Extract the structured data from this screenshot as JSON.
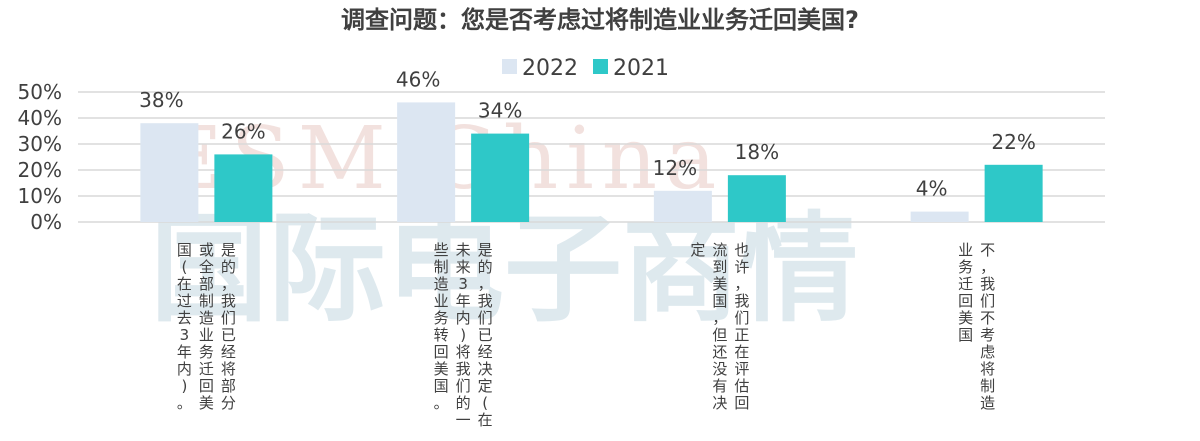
{
  "watermark": {
    "english": "ESM China",
    "chinese": "国际电子商情"
  },
  "chart_data": {
    "type": "bar",
    "title": "调查问题：您是否考虑过将制造业业务迁回美国?",
    "legend_position": "top",
    "ylim": [
      0,
      50
    ],
    "yticks": [
      "0%",
      "10%",
      "20%",
      "30%",
      "40%",
      "50%"
    ],
    "grid": true,
    "categories": [
      [
        "是的，我们已经将部分",
        "或全部制造业务迁回美",
        "国(在过去3年内)。"
      ],
      [
        "是的，我们已经决定(在",
        "未来3年内)将我们的一",
        "些制造业务转回美国。"
      ],
      [
        "也许，我们正在评估回",
        "流到美国，但还没有决",
        "定"
      ],
      [
        "不，我们不考虑将制造",
        "业务迁回美国"
      ]
    ],
    "series": [
      {
        "name": "2022",
        "color": "#dce6f2",
        "values": [
          38,
          46,
          12,
          4
        ],
        "labels": [
          "38%",
          "46%",
          "12%",
          "4%"
        ]
      },
      {
        "name": "2021",
        "color": "#2ec8c8",
        "values": [
          26,
          34,
          18,
          22
        ],
        "labels": [
          "26%",
          "34%",
          "18%",
          "22%"
        ]
      }
    ]
  }
}
